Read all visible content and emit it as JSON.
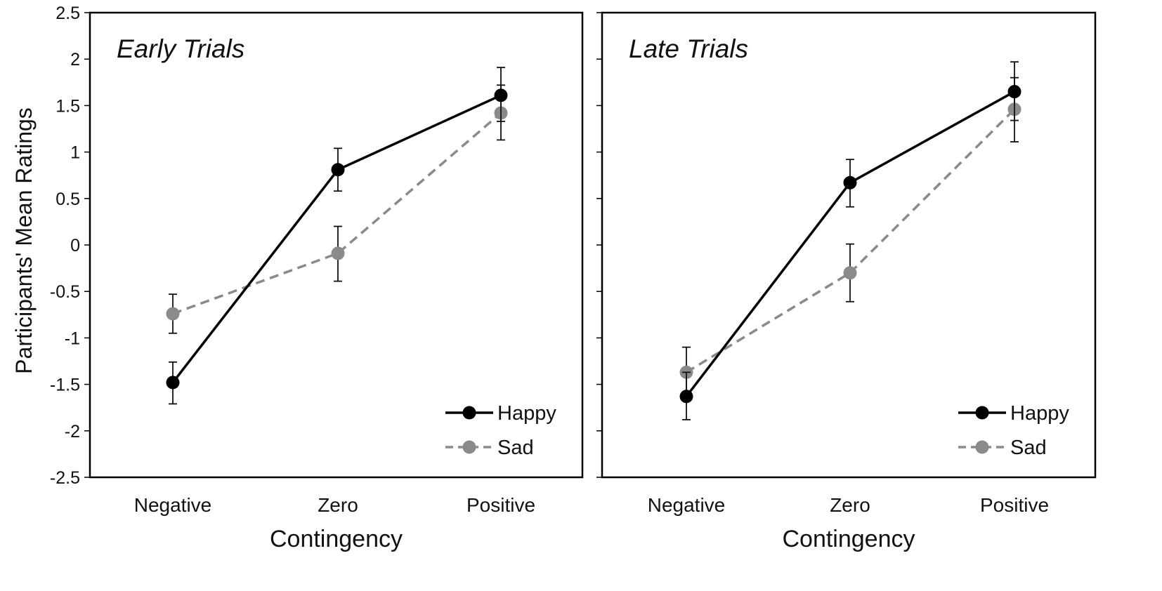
{
  "chart_data": [
    {
      "type": "line",
      "title": "Early Trials",
      "xlabel": "Contingency",
      "ylabel": "Participants' Mean Ratings",
      "categories": [
        "Negative",
        "Zero",
        "Positive"
      ],
      "ylim": [
        -2.5,
        2.5
      ],
      "yticks": [
        "2.5",
        "2",
        "1.5",
        "1",
        "0.5",
        "0",
        "-0.5",
        "-1",
        "-1.5",
        "-2",
        "-2.5"
      ],
      "legend_position": "bottom-right",
      "grid": false,
      "series": [
        {
          "name": "Happy",
          "color": "#000000",
          "dash": "solid",
          "values": [
            -1.48,
            0.81,
            1.61
          ],
          "err_low": [
            -1.71,
            0.58,
            1.33
          ],
          "err_high": [
            -1.26,
            1.04,
            1.91
          ]
        },
        {
          "name": "Sad",
          "color": "#8a8a8a",
          "dash": "dashed",
          "values": [
            -0.74,
            -0.09,
            1.42
          ],
          "err_low": [
            -0.95,
            -0.39,
            1.13
          ],
          "err_high": [
            -0.53,
            0.2,
            1.72
          ]
        }
      ]
    },
    {
      "type": "line",
      "title": "Late Trials",
      "xlabel": "Contingency",
      "ylabel": "",
      "categories": [
        "Negative",
        "Zero",
        "Positive"
      ],
      "ylim": [
        -2.5,
        2.5
      ],
      "legend_position": "bottom-right",
      "grid": false,
      "series": [
        {
          "name": "Happy",
          "color": "#000000",
          "dash": "solid",
          "values": [
            -1.63,
            0.67,
            1.65
          ],
          "err_low": [
            -1.88,
            0.41,
            1.34
          ],
          "err_high": [
            -1.37,
            0.92,
            1.97
          ]
        },
        {
          "name": "Sad",
          "color": "#8a8a8a",
          "dash": "dashed",
          "values": [
            -1.37,
            -0.3,
            1.46
          ],
          "err_low": [
            -1.63,
            -0.61,
            1.11
          ],
          "err_high": [
            -1.1,
            0.01,
            1.8
          ]
        }
      ]
    }
  ]
}
